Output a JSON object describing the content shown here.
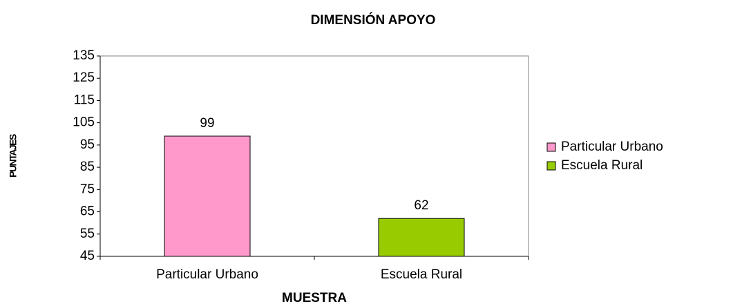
{
  "chart_data": {
    "type": "bar",
    "title": "DIMENSIÓN APOYO",
    "x_label": "MUESTRA",
    "y_label": "PUNTAJES",
    "categories": [
      "Particular Urbano",
      "Escuela Rural"
    ],
    "values": [
      99,
      62
    ],
    "colors": [
      "#ff99cc",
      "#99cc00"
    ],
    "ylim": [
      45,
      135
    ],
    "yticks": [
      45,
      55,
      65,
      75,
      85,
      95,
      105,
      115,
      125,
      135
    ],
    "grid": false,
    "legend": "right"
  }
}
